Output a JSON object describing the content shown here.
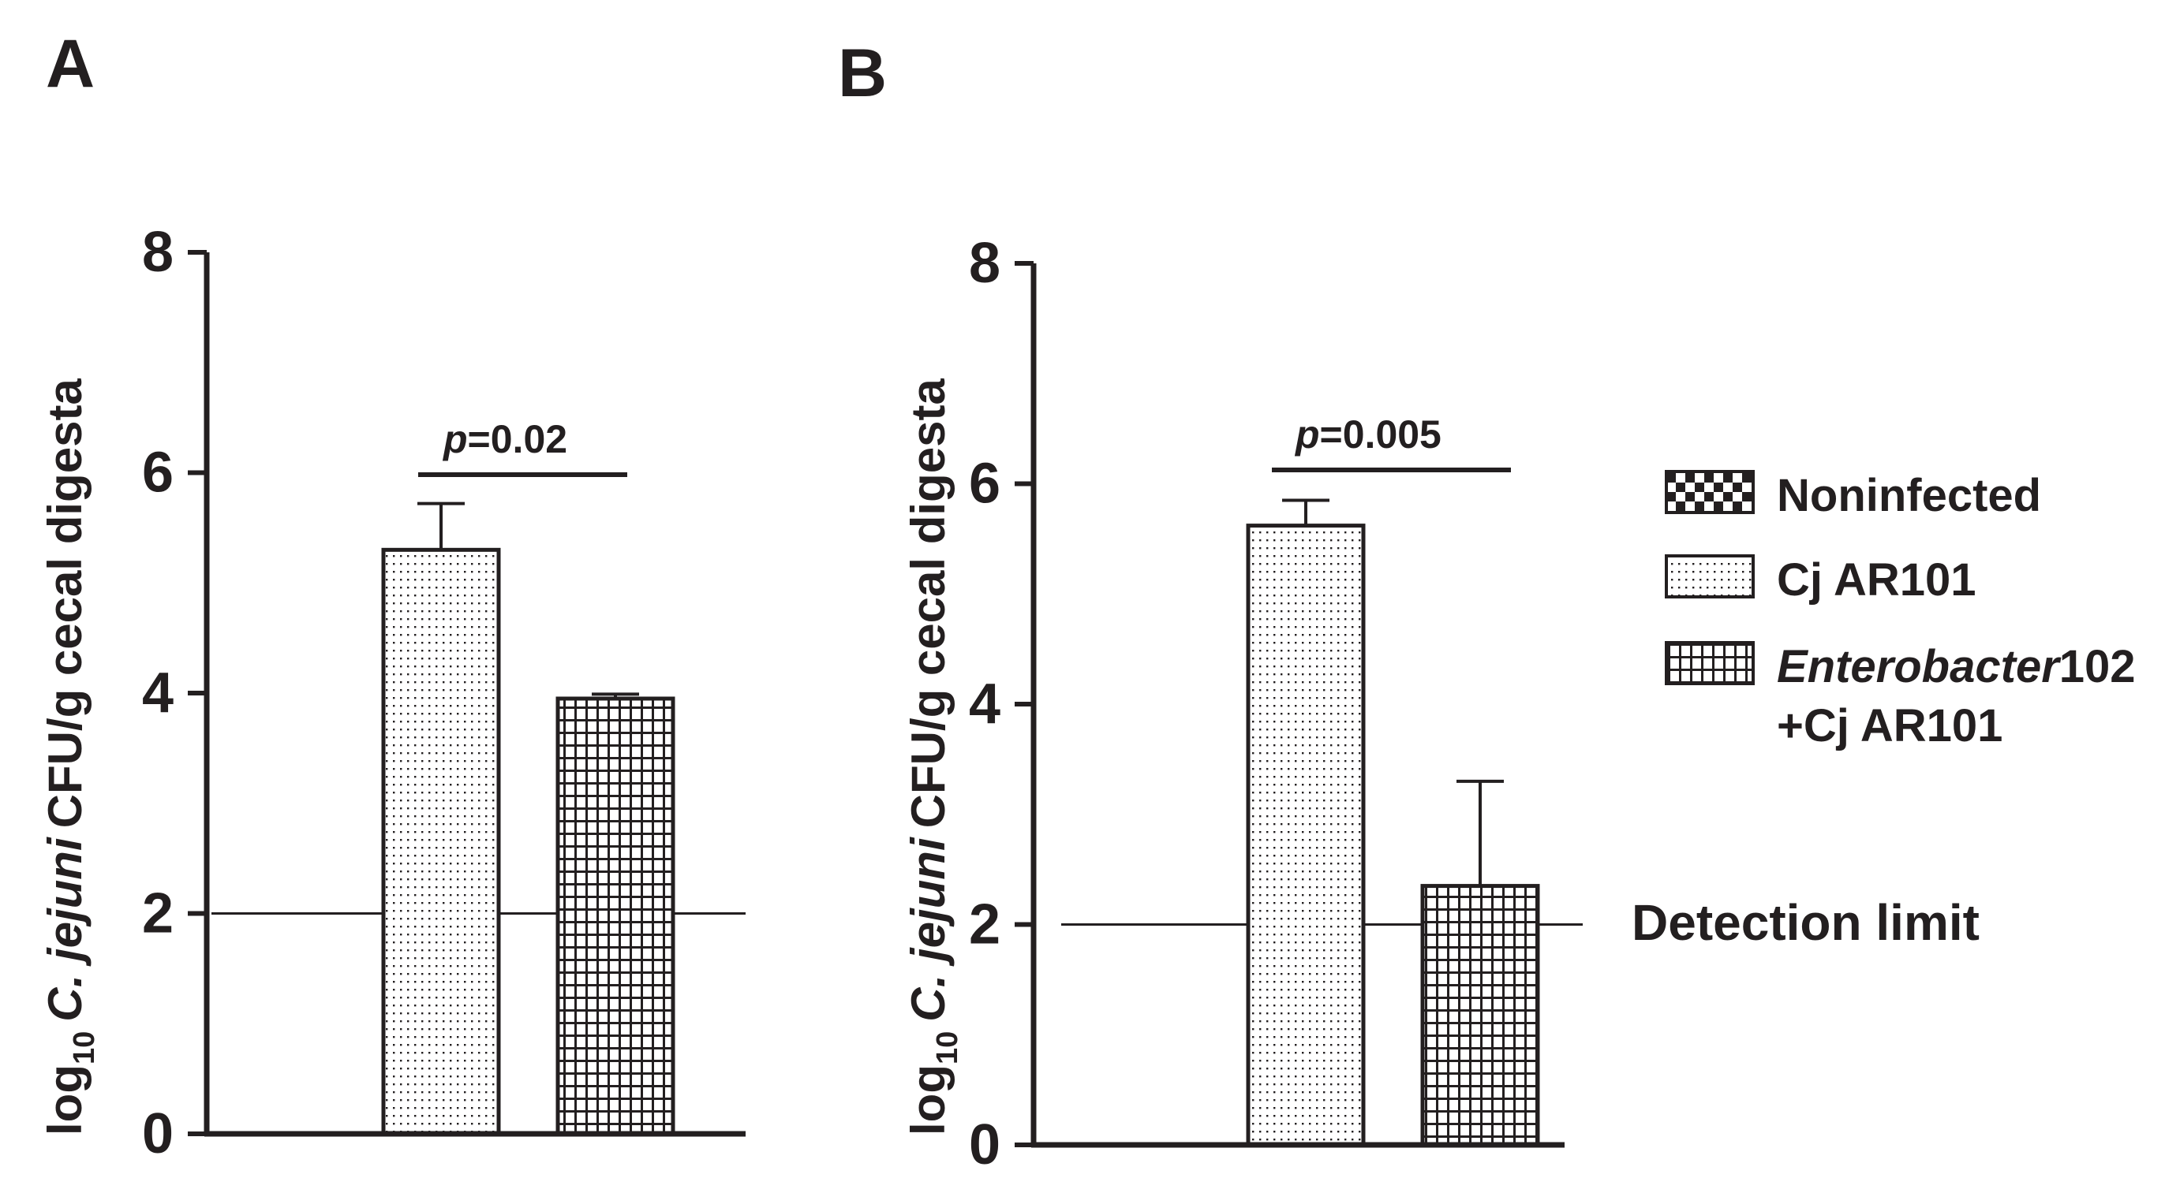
{
  "panels": [
    {
      "label": "A",
      "chart_data": {
        "type": "bar",
        "categories": [
          "Cj AR101",
          "Enterobacter102 +Cj AR101"
        ],
        "values": [
          5.3,
          3.95
        ],
        "errors": [
          0.42,
          0.04
        ],
        "patterns": [
          "dots",
          "grid"
        ],
        "ylim": [
          0,
          8
        ],
        "yticks": [
          "0",
          "2",
          "4",
          "6",
          "8"
        ],
        "ylabel": {
          "prefix": "log",
          "sub": "10",
          "italic": "C. jejuni",
          "rest": "CFU/g cecal digesta"
        },
        "detection_limit": 2,
        "significance": {
          "p_italic": "p",
          "p_rest": "=0.02"
        }
      }
    },
    {
      "label": "B",
      "chart_data": {
        "type": "bar",
        "categories": [
          "Cj AR101",
          "Enterobacter102 +Cj AR101"
        ],
        "values": [
          5.62,
          2.35
        ],
        "errors": [
          0.23,
          0.95
        ],
        "patterns": [
          "dots",
          "grid"
        ],
        "ylim": [
          0,
          8
        ],
        "yticks": [
          "0",
          "2",
          "4",
          "6",
          "8"
        ],
        "ylabel": {
          "prefix": "log",
          "sub": "10",
          "italic": "C. jejuni",
          "rest": "CFU/g cecal digesta"
        },
        "detection_limit": 2,
        "significance": {
          "p_italic": "p",
          "p_rest": "=0.005"
        }
      }
    }
  ],
  "legend": {
    "items": [
      {
        "pattern": "checker",
        "line1_italic": "",
        "line1": "Noninfected",
        "line2": ""
      },
      {
        "pattern": "dots",
        "line1_italic": "",
        "line1": "Cj AR101",
        "line2": ""
      },
      {
        "pattern": "grid",
        "line1_italic": "Enterobacter",
        "line1": "102",
        "line2": "+Cj AR101"
      }
    ]
  },
  "detection_limit_label": "Detection limit"
}
